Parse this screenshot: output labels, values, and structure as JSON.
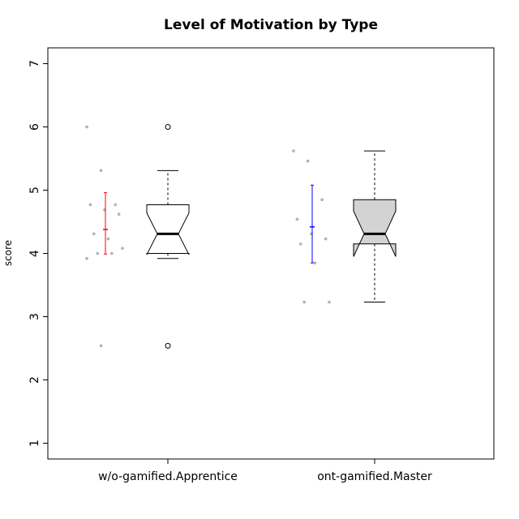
{
  "chart_data": {
    "type": "box",
    "title": "Level of Motivation by Type",
    "xlabel": "",
    "ylabel": "score",
    "ylim": [
      0.75,
      7.25
    ],
    "yticks": [
      "1",
      "2",
      "3",
      "4",
      "5",
      "6",
      "7"
    ],
    "categories": [
      "w/o-gamified.Apprentice",
      "ont-gamified.Master"
    ],
    "boxes": [
      {
        "category": "w/o-gamified.Apprentice",
        "q1": 4.0,
        "median": 4.31,
        "q3": 4.77,
        "whisker_low": 3.92,
        "whisker_high": 5.31,
        "notch_low": 3.98,
        "notch_high": 4.64,
        "outliers": [
          6.0,
          2.54
        ],
        "fill": "#ffffff",
        "mean": 4.38,
        "mean_ci": [
          3.99,
          4.96
        ],
        "mean_color": "#ff0000",
        "points": [
          6.0,
          5.31,
          4.77,
          4.77,
          4.69,
          4.62,
          4.31,
          4.23,
          4.08,
          4.0,
          4.0,
          3.92,
          2.54
        ]
      },
      {
        "category": "ont-gamified.Master",
        "q1": 4.15,
        "median": 4.31,
        "q3": 4.85,
        "whisker_low": 3.23,
        "whisker_high": 5.62,
        "notch_low": 3.95,
        "notch_high": 4.67,
        "outliers": [],
        "fill": "#d3d3d3",
        "mean": 4.42,
        "mean_ci": [
          3.85,
          5.08
        ],
        "mean_color": "#0000ff",
        "points": [
          5.62,
          5.46,
          4.85,
          4.54,
          4.31,
          4.23,
          4.15,
          3.85,
          3.23,
          3.23
        ]
      }
    ],
    "grid": false,
    "legend": "none"
  }
}
